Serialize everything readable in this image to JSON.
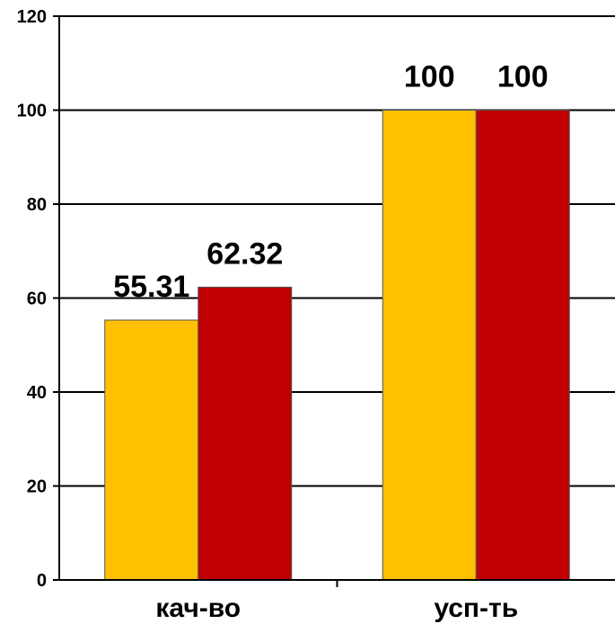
{
  "chart_data": {
    "type": "bar",
    "categories": [
      "кач-во",
      "усп-ть"
    ],
    "series": [
      {
        "values": [
          55.31,
          100
        ],
        "color": "#FFC000"
      },
      {
        "values": [
          62.32,
          100
        ],
        "color": "#C00000"
      }
    ],
    "data_labels": [
      [
        "55.31",
        "100"
      ],
      [
        "62.32",
        "100"
      ]
    ],
    "yticks": [
      0,
      20,
      40,
      60,
      80,
      100,
      120
    ],
    "ylim": [
      0,
      120
    ],
    "grid": true,
    "legend": "none",
    "title": "",
    "xlabel": "",
    "ylabel": ""
  }
}
